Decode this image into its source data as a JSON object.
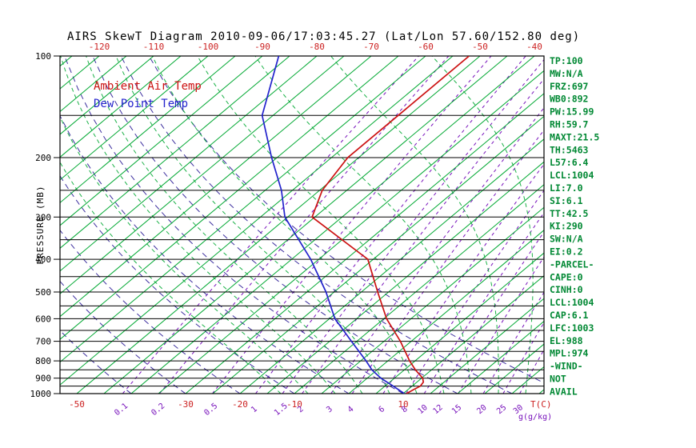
{
  "title": "AIRS SkewT Diagram 2010-09-06/17:03:45.27 (Lat/Lon 57.60/152.80 deg)",
  "legend": {
    "temp_label": "Ambient Air Temp",
    "dew_label": "Dew Point Temp"
  },
  "axes": {
    "pressure_label": "PRESSURE (MB)",
    "temp_unit_label": "T(C)",
    "mixing_unit_label": "g(g/kg)"
  },
  "stats": [
    "TP:100",
    "MW:N/A",
    "FRZ:697",
    "WB0:892",
    "PW:15.99",
    "RH:59.7",
    "MAXT:21.5",
    "TH:5463",
    "L57:6.4",
    "LCL:1004",
    "LI:7.0",
    "SI:6.1",
    "TT:42.5",
    "KI:290",
    "SW:N/A",
    "EI:0.2",
    "-PARCEL-",
    "CAPE:0",
    "CINH:0",
    "LCL:1004",
    "CAP:6.1",
    "LFC:1003",
    "EL:988",
    "MPL:974",
    "-WIND-",
    "NOT",
    "AVAIL"
  ],
  "colors": {
    "isotherm": "#00a832",
    "moist_adiabat": "#00a832",
    "dry_adiabat": "#3d2f9f",
    "mixing_ratio": "#7711bb",
    "temp_curve": "#cc1111",
    "dew_curve": "#2222cc",
    "stats_text": "#008833",
    "axis_text": "#000000",
    "top_tick_text": "#cc2222",
    "bottom_tick_text": "#cc2222"
  },
  "chart_data": {
    "type": "line",
    "subtype": "skew-t-log-p",
    "title": "AIRS SkewT Diagram 2010-09-06/17:03:45.27 (Lat/Lon 57.60/152.80 deg)",
    "y_axis": {
      "label": "PRESSURE (MB)",
      "scale": "log",
      "ticks_mb": [
        100,
        200,
        300,
        400,
        500,
        600,
        700,
        800,
        900,
        1000
      ],
      "range_mb": [
        100,
        1000
      ],
      "line_step_mb": 50
    },
    "x_axis": {
      "label": "T(C)",
      "top_ticks_c": [
        -120,
        -110,
        -100,
        -90,
        -80,
        -70,
        -60,
        -50,
        -40
      ],
      "bottom_ticks_c": [
        -50,
        -30,
        -20,
        -10,
        10
      ]
    },
    "mixing_ratio_lines_g_per_kg": [
      0.1,
      0.2,
      0.5,
      1,
      1.5,
      2,
      3,
      4,
      6,
      8,
      10,
      12,
      15,
      20,
      25,
      30
    ],
    "grid": {
      "isotherms_c": {
        "min": -130,
        "max": 40,
        "step": 5
      },
      "dry_adiabats_start_c": {
        "min": -40,
        "max": 40,
        "step": 10
      },
      "moist_adiabats_start_c": {
        "min": -12.5,
        "max": 37.5,
        "step": 5
      }
    },
    "series": [
      {
        "key": "temperature",
        "name": "Ambient Air Temp",
        "color": "#cc1111",
        "pressure_mb": [
          1000,
          975,
          950,
          925,
          900,
          850,
          800,
          700,
          600,
          500,
          400,
          300,
          250,
          200,
          150,
          100
        ],
        "temp_c": [
          10.6,
          11.0,
          11.5,
          11.2,
          10.2,
          7.0,
          4.0,
          -2.0,
          -9.5,
          -17.0,
          -26.0,
          -45.5,
          -49.5,
          -52.0,
          -52.0,
          -52.0
        ]
      },
      {
        "key": "dewpoint",
        "name": "Dew Point Temp",
        "color": "#2222cc",
        "pressure_mb": [
          1000,
          950,
          900,
          850,
          800,
          700,
          600,
          500,
          400,
          300,
          250,
          200,
          150,
          100
        ],
        "temp_c": [
          10.2,
          6.5,
          2.5,
          -1.0,
          -4.0,
          -11.0,
          -19.0,
          -26.5,
          -36.5,
          -50.5,
          -57.0,
          -66.0,
          -77.0,
          -87.0
        ]
      }
    ]
  }
}
